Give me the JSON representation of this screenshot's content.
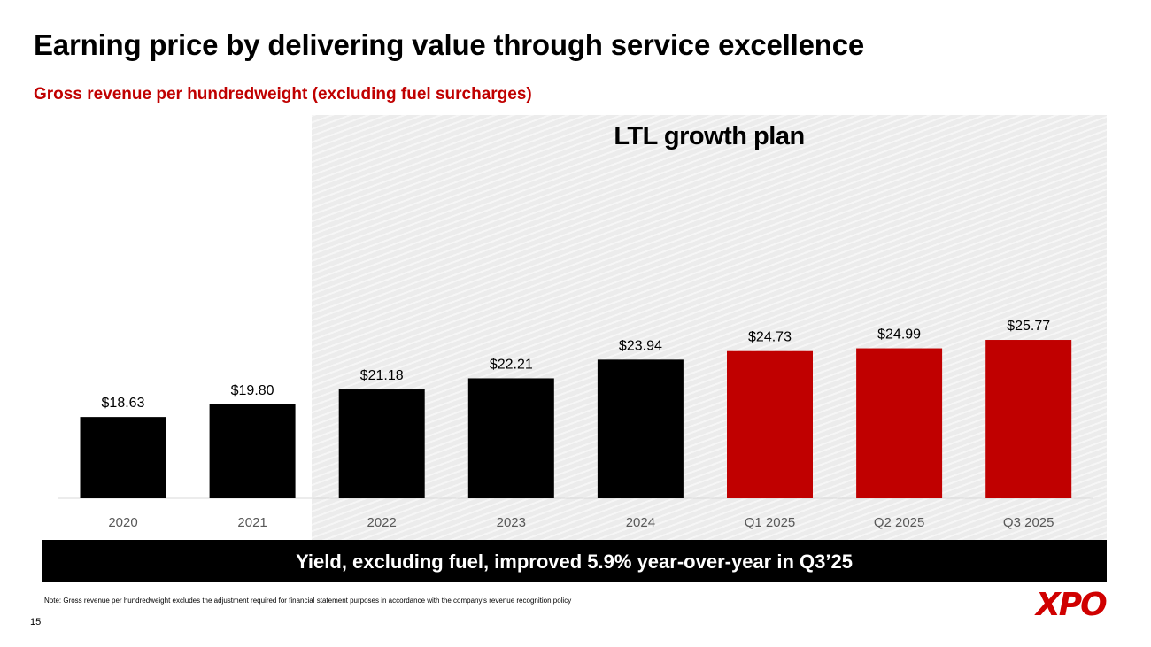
{
  "page": {
    "title": "Earning price by delivering value through service excellence",
    "subtitle": "Gross revenue per hundredweight (excluding fuel surcharges)",
    "banner": "Yield, excluding fuel, improved 5.9% year-over-year in Q3’25",
    "note": "Note: Gross revenue per hundredweight excludes the adjustment required for financial statement purposes in accordance with the company's revenue recognition policy",
    "page_number": "15",
    "logo": "XPO"
  },
  "colors": {
    "historic": "#000000",
    "plan": "#c00000",
    "accent": "#c00000",
    "axis_label": "#595959"
  },
  "chart_data": {
    "type": "bar",
    "title": "LTL growth plan",
    "categories": [
      "2020",
      "2021",
      "2022",
      "2023",
      "2024",
      "Q1 2025",
      "Q2 2025",
      "Q3 2025"
    ],
    "values": [
      18.63,
      19.8,
      21.18,
      22.21,
      23.94,
      24.73,
      24.99,
      25.77
    ],
    "value_labels": [
      "$18.63",
      "$19.80",
      "$21.18",
      "$22.21",
      "$23.94",
      "$24.73",
      "$24.99",
      "$25.77"
    ],
    "bar_colors": [
      "#000000",
      "#000000",
      "#000000",
      "#000000",
      "#000000",
      "#c00000",
      "#c00000",
      "#c00000"
    ],
    "shaded_region": {
      "label": "LTL growth plan",
      "from_category": "2022",
      "to_category": "Q3 2025"
    },
    "xlabel": "",
    "ylabel": "",
    "grid": false,
    "legend": "none"
  }
}
